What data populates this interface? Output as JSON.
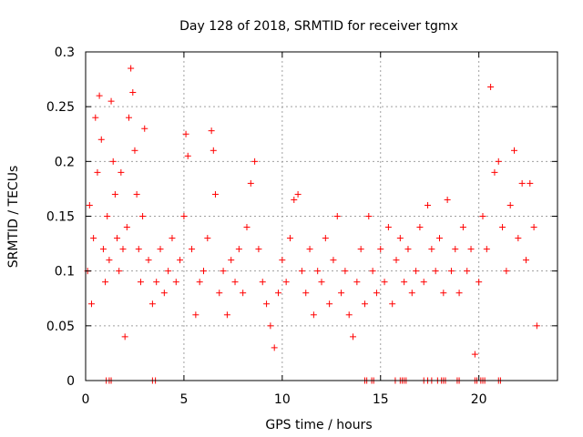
{
  "chart_data": {
    "type": "scatter",
    "title": "Day 128 of 2018, SRMTID for receiver tgmx",
    "xlabel": "GPS time / hours",
    "ylabel": "SRMTID / TECUs",
    "xlim": [
      0,
      24
    ],
    "ylim": [
      0,
      0.3
    ],
    "x_ticks": [
      0,
      5,
      10,
      15,
      20
    ],
    "x_tick_labels": [
      "0",
      "5",
      "10",
      "15",
      "20"
    ],
    "y_ticks": [
      0,
      0.05,
      0.1,
      0.15,
      0.2,
      0.25,
      0.3
    ],
    "y_tick_labels": [
      "0",
      "0.05",
      "0.1",
      "0.15",
      "0.2",
      "0.25",
      "0.3"
    ],
    "grid": true,
    "marker": "+",
    "series": [
      {
        "name": "SRMTID",
        "color": "#ff0000",
        "points": [
          [
            0.1,
            0.1
          ],
          [
            0.2,
            0.16
          ],
          [
            0.3,
            0.07
          ],
          [
            0.4,
            0.13
          ],
          [
            0.5,
            0.24
          ],
          [
            0.6,
            0.19
          ],
          [
            0.7,
            0.26
          ],
          [
            0.8,
            0.22
          ],
          [
            0.9,
            0.12
          ],
          [
            1.0,
            0.09
          ],
          [
            1.1,
            0.15
          ],
          [
            1.2,
            0.11
          ],
          [
            1.3,
            0.255
          ],
          [
            1.4,
            0.2
          ],
          [
            1.5,
            0.17
          ],
          [
            1.6,
            0.13
          ],
          [
            1.7,
            0.1
          ],
          [
            1.8,
            0.19
          ],
          [
            1.9,
            0.12
          ],
          [
            2.0,
            0.04
          ],
          [
            2.1,
            0.14
          ],
          [
            2.2,
            0.24
          ],
          [
            2.3,
            0.285
          ],
          [
            2.4,
            0.263
          ],
          [
            2.5,
            0.21
          ],
          [
            2.6,
            0.17
          ],
          [
            2.7,
            0.12
          ],
          [
            2.8,
            0.09
          ],
          [
            2.9,
            0.15
          ],
          [
            3.0,
            0.23
          ],
          [
            3.2,
            0.11
          ],
          [
            3.4,
            0.07
          ],
          [
            3.6,
            0.09
          ],
          [
            3.8,
            0.12
          ],
          [
            4.0,
            0.08
          ],
          [
            4.2,
            0.1
          ],
          [
            4.4,
            0.13
          ],
          [
            4.6,
            0.09
          ],
          [
            4.8,
            0.11
          ],
          [
            5.0,
            0.15
          ],
          [
            5.1,
            0.225
          ],
          [
            5.2,
            0.205
          ],
          [
            5.4,
            0.12
          ],
          [
            5.6,
            0.06
          ],
          [
            5.8,
            0.09
          ],
          [
            6.0,
            0.1
          ],
          [
            6.2,
            0.13
          ],
          [
            6.4,
            0.228
          ],
          [
            6.5,
            0.21
          ],
          [
            6.6,
            0.17
          ],
          [
            6.8,
            0.08
          ],
          [
            7.0,
            0.1
          ],
          [
            7.2,
            0.06
          ],
          [
            7.4,
            0.11
          ],
          [
            7.6,
            0.09
          ],
          [
            7.8,
            0.12
          ],
          [
            8.0,
            0.08
          ],
          [
            8.2,
            0.14
          ],
          [
            8.4,
            0.18
          ],
          [
            8.6,
            0.2
          ],
          [
            8.8,
            0.12
          ],
          [
            9.0,
            0.09
          ],
          [
            9.2,
            0.07
          ],
          [
            9.4,
            0.05
          ],
          [
            9.6,
            0.03
          ],
          [
            9.8,
            0.08
          ],
          [
            10.0,
            0.11
          ],
          [
            10.2,
            0.09
          ],
          [
            10.4,
            0.13
          ],
          [
            10.6,
            0.165
          ],
          [
            10.8,
            0.17
          ],
          [
            11.0,
            0.1
          ],
          [
            11.2,
            0.08
          ],
          [
            11.4,
            0.12
          ],
          [
            11.6,
            0.06
          ],
          [
            11.8,
            0.1
          ],
          [
            12.0,
            0.09
          ],
          [
            12.2,
            0.13
          ],
          [
            12.4,
            0.07
          ],
          [
            12.6,
            0.11
          ],
          [
            12.8,
            0.15
          ],
          [
            13.0,
            0.08
          ],
          [
            13.2,
            0.1
          ],
          [
            13.4,
            0.06
          ],
          [
            13.6,
            0.04
          ],
          [
            13.8,
            0.09
          ],
          [
            14.0,
            0.12
          ],
          [
            14.2,
            0.07
          ],
          [
            14.4,
            0.15
          ],
          [
            14.6,
            0.1
          ],
          [
            14.8,
            0.08
          ],
          [
            15.0,
            0.12
          ],
          [
            15.2,
            0.09
          ],
          [
            15.4,
            0.14
          ],
          [
            15.6,
            0.07
          ],
          [
            15.8,
            0.11
          ],
          [
            16.0,
            0.13
          ],
          [
            16.2,
            0.09
          ],
          [
            16.4,
            0.12
          ],
          [
            16.6,
            0.08
          ],
          [
            16.8,
            0.1
          ],
          [
            17.0,
            0.14
          ],
          [
            17.2,
            0.09
          ],
          [
            17.4,
            0.16
          ],
          [
            17.6,
            0.12
          ],
          [
            17.8,
            0.1
          ],
          [
            18.0,
            0.13
          ],
          [
            18.2,
            0.08
          ],
          [
            18.4,
            0.165
          ],
          [
            18.6,
            0.1
          ],
          [
            18.8,
            0.12
          ],
          [
            19.0,
            0.08
          ],
          [
            19.2,
            0.14
          ],
          [
            19.4,
            0.1
          ],
          [
            19.6,
            0.12
          ],
          [
            19.8,
            0.024
          ],
          [
            20.0,
            0.09
          ],
          [
            20.2,
            0.15
          ],
          [
            20.4,
            0.12
          ],
          [
            20.6,
            0.268
          ],
          [
            20.8,
            0.19
          ],
          [
            21.0,
            0.2
          ],
          [
            21.2,
            0.14
          ],
          [
            21.4,
            0.1
          ],
          [
            21.6,
            0.16
          ],
          [
            21.8,
            0.21
          ],
          [
            22.0,
            0.13
          ],
          [
            22.2,
            0.18
          ],
          [
            22.4,
            0.11
          ],
          [
            22.6,
            0.18
          ],
          [
            22.8,
            0.14
          ],
          [
            22.95,
            0.05
          ]
        ],
        "zero_points": [
          1.05,
          1.2,
          1.3,
          3.4,
          3.55,
          14.2,
          14.3,
          14.55,
          14.65,
          15.75,
          16.0,
          16.1,
          16.2,
          16.3,
          17.2,
          17.4,
          17.6,
          17.9,
          18.1,
          18.2,
          18.3,
          18.9,
          19.0,
          19.8,
          19.9,
          20.1,
          20.2,
          20.3,
          21.0,
          21.1
        ]
      }
    ]
  }
}
